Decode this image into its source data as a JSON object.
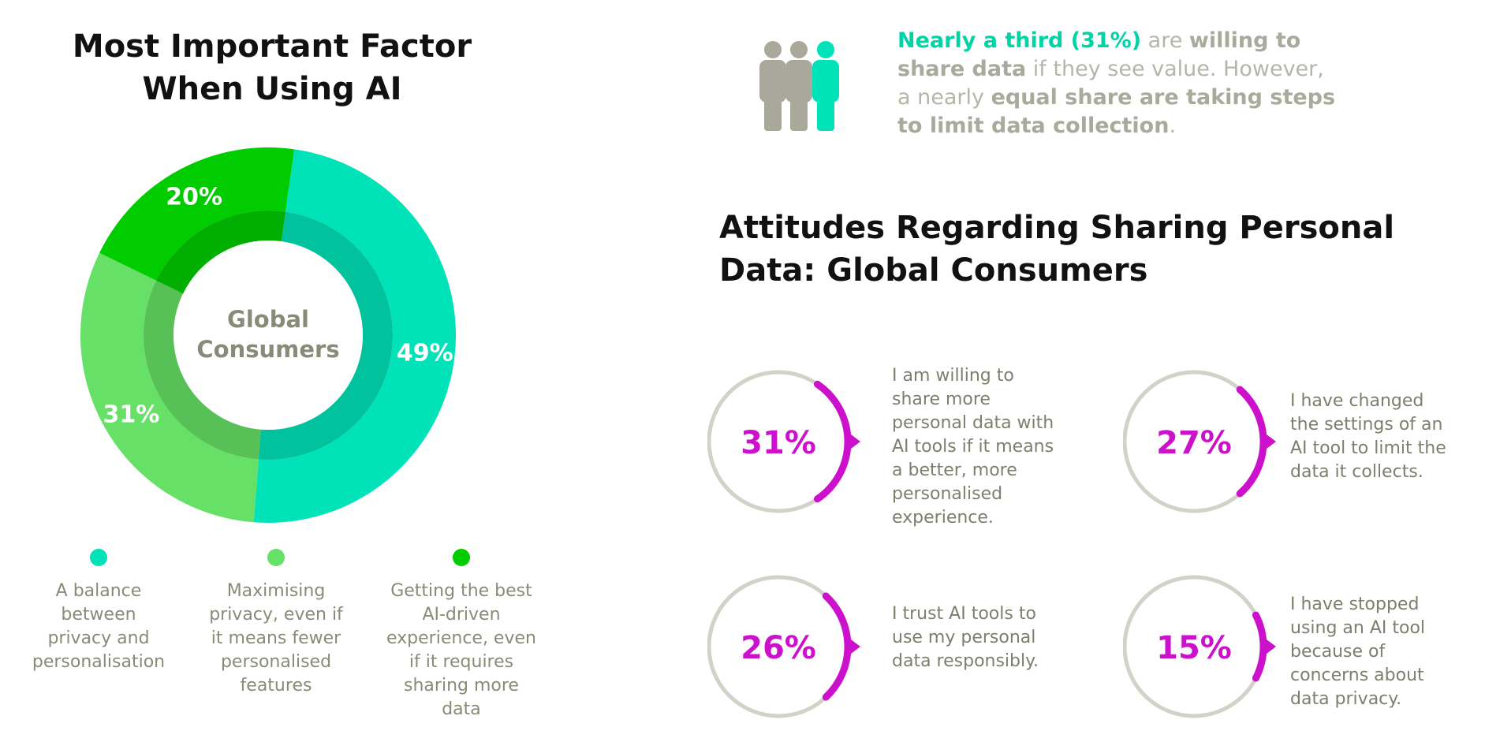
{
  "left_title": {
    "line1": "Most Important Factor",
    "line2": "When Using AI"
  },
  "chart_data": [
    {
      "type": "pie",
      "center_label": {
        "line1": "Global",
        "line2": "Consumers"
      },
      "slices": [
        {
          "label": "A balance between privacy and personalisation",
          "value": 49,
          "display": "49%",
          "color": "#00e3b8"
        },
        {
          "label": "Maximising privacy, even if it means fewer personalised features",
          "value": 31,
          "display": "31%",
          "color": "#66e066"
        },
        {
          "label": "Getting the best AI-driven experience, even if it requires sharing more data",
          "value": 20,
          "display": "20%",
          "color": "#00cc00"
        }
      ]
    },
    {
      "type": "pie",
      "title": "Attitudes Regarding Sharing Personal Data: Global Consumers",
      "items": [
        {
          "value": 31,
          "display": "31%",
          "label": "I am willing to share more personal data with AI tools if it means a better, more personalised experience."
        },
        {
          "value": 27,
          "display": "27%",
          "label": "I have changed the settings of an AI tool to limit the data it collects."
        },
        {
          "value": 26,
          "display": "26%",
          "label": "I trust AI tools to use my personal data responsibly."
        },
        {
          "value": 15,
          "display": "15%",
          "label": "I have stopped using an AI tool because of concerns about data privacy."
        }
      ]
    }
  ],
  "legend": [
    {
      "lines": [
        "A balance",
        "between",
        "privacy and",
        "personalisation"
      ],
      "color": "#00e3b8"
    },
    {
      "lines": [
        "Maximising",
        "privacy, even if",
        "it means fewer",
        "personalised",
        "features"
      ],
      "color": "#66e066"
    },
    {
      "lines": [
        "Getting the best",
        "AI-driven",
        "experience, even",
        "if it requires",
        "sharing more",
        "data"
      ],
      "color": "#00cc00"
    }
  ],
  "callout": {
    "highlight": "Nearly a third (31%)",
    "t1": " are ",
    "bold1": "willing to share data",
    "t2": " if they see value. However, a nearly ",
    "bold2": "equal share are taking steps to limit data collection",
    "t3": "."
  },
  "right_title": {
    "line1": "Attitudes Regarding Sharing Personal",
    "line2": "Data: Global Consumers"
  },
  "stats": [
    {
      "lines": [
        "I am willing to",
        "share more",
        "personal data with",
        "AI tools if it means",
        "a better, more",
        "personalised",
        "experience."
      ]
    },
    {
      "lines": [
        "I have changed",
        "the settings of an",
        "AI tool to limit the",
        "data it collects."
      ]
    },
    {
      "lines": [
        "I trust AI tools to",
        "use my personal",
        "data responsibly."
      ]
    },
    {
      "lines": [
        "I have stopped",
        "using an AI tool",
        "because of",
        "concerns about",
        "data privacy."
      ]
    }
  ],
  "colors": {
    "accent_magenta": "#cc11cc",
    "ring_grey": "#d2d2c8",
    "people_grey": "#a9a89b",
    "person_teal": "#00e3b8"
  },
  "icons": {
    "people": "people-icon"
  }
}
